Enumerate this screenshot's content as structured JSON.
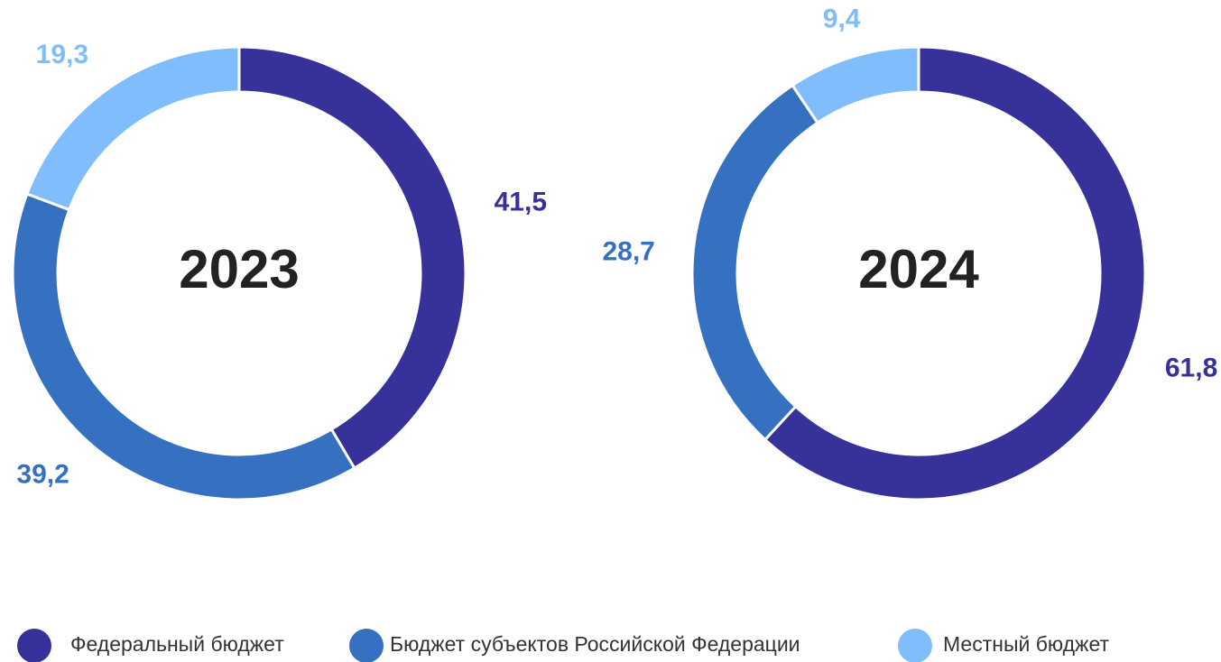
{
  "chart_data": [
    {
      "type": "donut",
      "title": "2023",
      "categories": [
        "Федеральный бюджет",
        "Бюджет субъектов Российской Федерации",
        "Местный бюджет"
      ],
      "values": [
        41.5,
        39.2,
        19.3
      ],
      "value_labels": [
        "41,5",
        "39,2",
        "19,3"
      ],
      "colors": [
        "#37319a",
        "#3671c1",
        "#80bdfc"
      ]
    },
    {
      "type": "donut",
      "title": "2024",
      "categories": [
        "Федеральный бюджет",
        "Бюджет субъектов Российской Федерации",
        "Местный бюджет"
      ],
      "values": [
        61.8,
        28.7,
        9.4
      ],
      "value_labels": [
        "61,8",
        "28,7",
        "9,4"
      ],
      "colors": [
        "#37319a",
        "#3671c1",
        "#80bdfc"
      ]
    }
  ]
}
